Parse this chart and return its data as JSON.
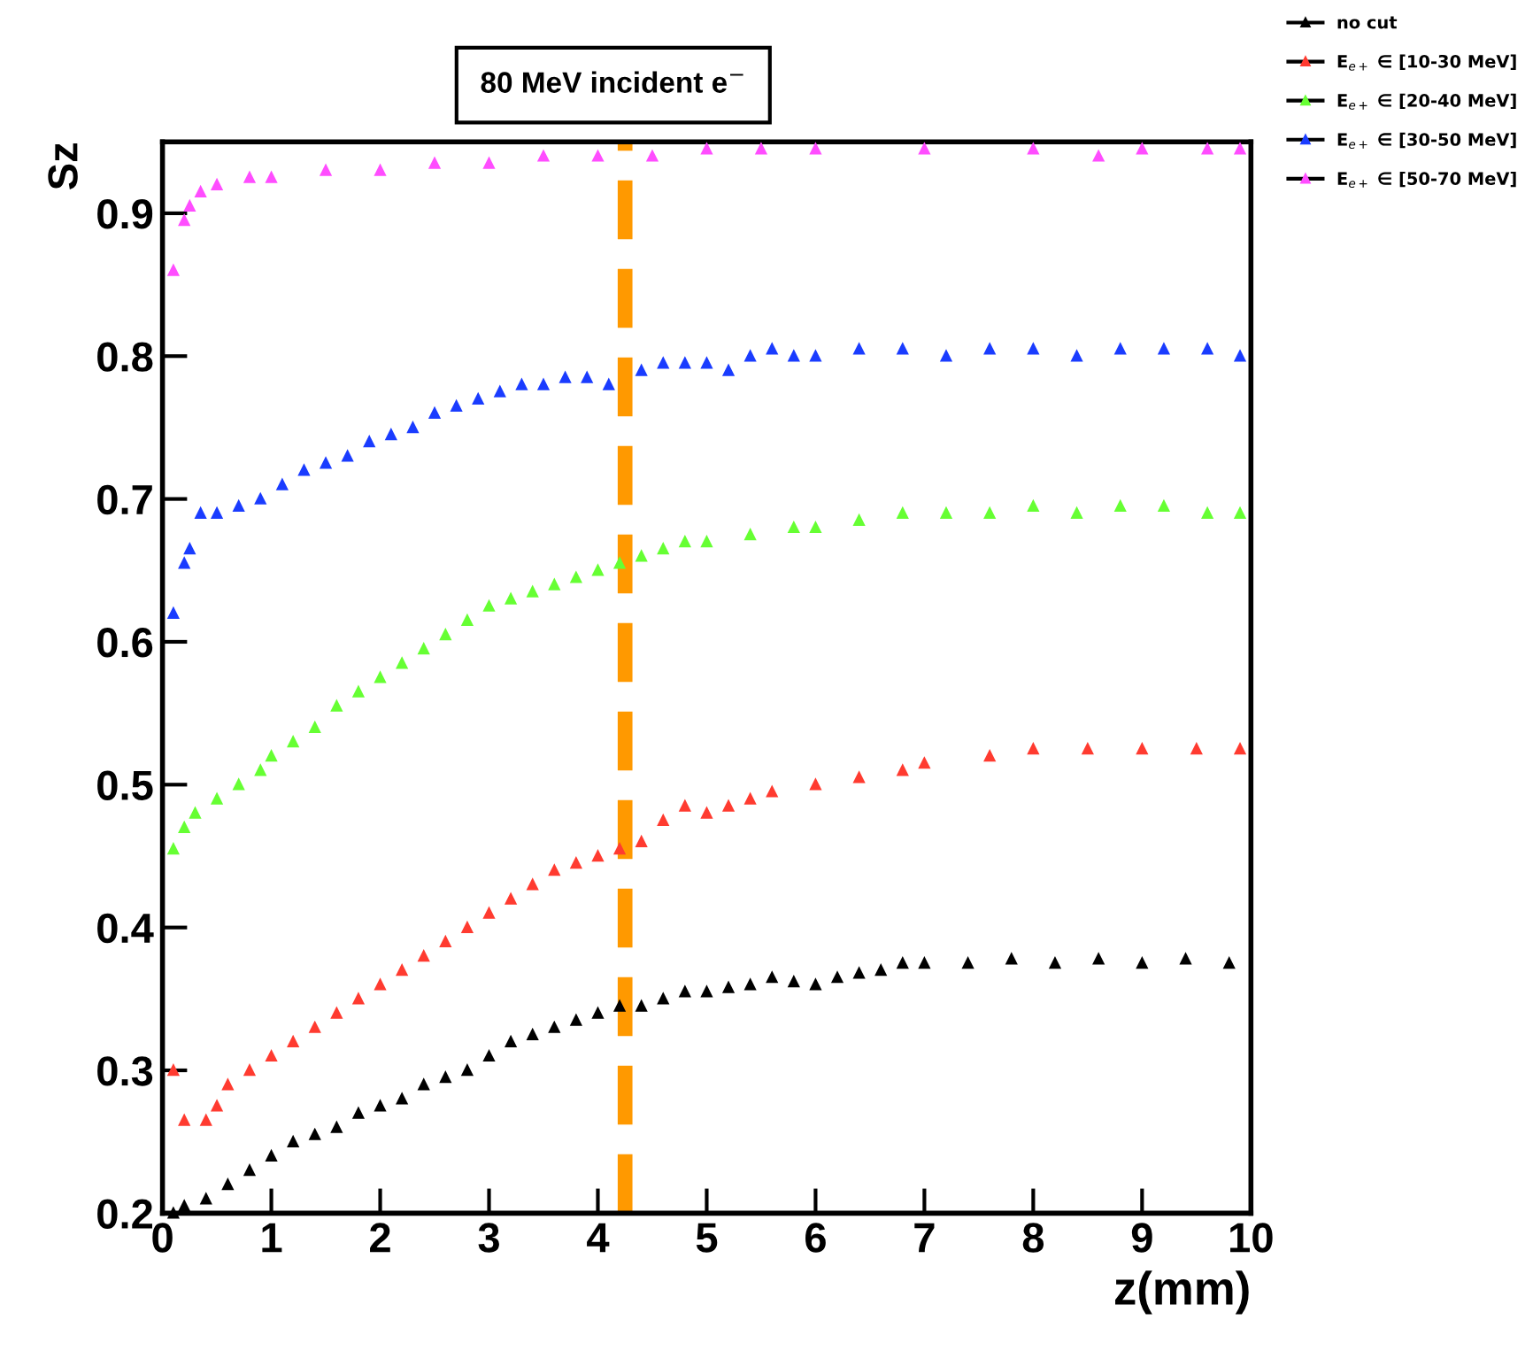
{
  "chart_data": {
    "type": "scatter",
    "title": "80 MeV incident e$^{−}$",
    "xlabel": "z(mm)",
    "ylabel": "Sz",
    "xlim": [
      0,
      10
    ],
    "xticks": [
      0,
      1,
      2,
      3,
      4,
      5,
      6,
      7,
      8,
      9,
      10
    ],
    "ylim": [
      0.2,
      0.95
    ],
    "yticks": [
      0.2,
      0.3,
      0.4,
      0.5,
      0.6,
      0.7,
      0.8,
      0.9
    ],
    "marker": "triangle",
    "legend": "top right",
    "grid": false,
    "ref_lines": [
      {
        "axis": "x",
        "value": 4.25,
        "color": "#ff9900",
        "line_style": "dashed"
      }
    ],
    "series": [
      {
        "name": "no cut",
        "color": "#000000",
        "x": [
          0.1,
          0.2,
          0.4,
          0.6,
          0.8,
          1.0,
          1.2,
          1.4,
          1.6,
          1.8,
          2.0,
          2.2,
          2.4,
          2.6,
          2.8,
          3.0,
          3.2,
          3.4,
          3.6,
          3.8,
          4.0,
          4.2,
          4.4,
          4.6,
          4.8,
          5.0,
          5.2,
          5.4,
          5.6,
          5.8,
          6.0,
          6.2,
          6.4,
          6.6,
          6.8,
          7.0,
          7.4,
          7.8,
          8.2,
          8.6,
          9.0,
          9.4,
          9.8
        ],
        "values": [
          0.2,
          0.205,
          0.21,
          0.22,
          0.23,
          0.24,
          0.25,
          0.255,
          0.26,
          0.27,
          0.275,
          0.28,
          0.29,
          0.295,
          0.3,
          0.31,
          0.32,
          0.325,
          0.33,
          0.335,
          0.34,
          0.345,
          0.345,
          0.35,
          0.355,
          0.355,
          0.358,
          0.36,
          0.365,
          0.362,
          0.36,
          0.365,
          0.368,
          0.37,
          0.375,
          0.375,
          0.375,
          0.378,
          0.375,
          0.378,
          0.375,
          0.378,
          0.375
        ]
      },
      {
        "name": "E$_{e+}$ ∈ [10-30 MeV]",
        "color": "#ff3b30",
        "x": [
          0.1,
          0.2,
          0.4,
          0.5,
          0.6,
          0.8,
          1.0,
          1.2,
          1.4,
          1.6,
          1.8,
          2.0,
          2.2,
          2.4,
          2.6,
          2.8,
          3.0,
          3.2,
          3.4,
          3.6,
          3.8,
          4.0,
          4.2,
          4.4,
          4.6,
          4.8,
          5.0,
          5.2,
          5.4,
          5.6,
          6.0,
          6.4,
          6.8,
          7.0,
          7.6,
          8.0,
          8.5,
          9.0,
          9.5,
          9.9
        ],
        "values": [
          0.3,
          0.265,
          0.265,
          0.275,
          0.29,
          0.3,
          0.31,
          0.32,
          0.33,
          0.34,
          0.35,
          0.36,
          0.37,
          0.38,
          0.39,
          0.4,
          0.41,
          0.42,
          0.43,
          0.44,
          0.445,
          0.45,
          0.455,
          0.46,
          0.475,
          0.485,
          0.48,
          0.485,
          0.49,
          0.495,
          0.5,
          0.505,
          0.51,
          0.515,
          0.52,
          0.525,
          0.525,
          0.525,
          0.525,
          0.525
        ]
      },
      {
        "name": "E$_{e+}$ ∈ [20-40 MeV]",
        "color": "#66ff33",
        "x": [
          0.1,
          0.2,
          0.3,
          0.5,
          0.7,
          0.9,
          1.0,
          1.2,
          1.4,
          1.6,
          1.8,
          2.0,
          2.2,
          2.4,
          2.6,
          2.8,
          3.0,
          3.2,
          3.4,
          3.6,
          3.8,
          4.0,
          4.2,
          4.4,
          4.6,
          4.8,
          5.0,
          5.4,
          5.8,
          6.0,
          6.4,
          6.8,
          7.2,
          7.6,
          8.0,
          8.4,
          8.8,
          9.2,
          9.6,
          9.9
        ],
        "values": [
          0.455,
          0.47,
          0.48,
          0.49,
          0.5,
          0.51,
          0.52,
          0.53,
          0.54,
          0.555,
          0.565,
          0.575,
          0.585,
          0.595,
          0.605,
          0.615,
          0.625,
          0.63,
          0.635,
          0.64,
          0.645,
          0.65,
          0.655,
          0.66,
          0.665,
          0.67,
          0.67,
          0.675,
          0.68,
          0.68,
          0.685,
          0.69,
          0.69,
          0.69,
          0.695,
          0.69,
          0.695,
          0.695,
          0.69,
          0.69
        ]
      },
      {
        "name": "E$_{e+}$ ∈ [30-50 MeV]",
        "color": "#1a3cff",
        "x": [
          0.1,
          0.2,
          0.25,
          0.35,
          0.5,
          0.7,
          0.9,
          1.1,
          1.3,
          1.5,
          1.7,
          1.9,
          2.1,
          2.3,
          2.5,
          2.7,
          2.9,
          3.1,
          3.3,
          3.5,
          3.7,
          3.9,
          4.1,
          4.4,
          4.6,
          4.8,
          5.0,
          5.2,
          5.4,
          5.6,
          5.8,
          6.0,
          6.4,
          6.8,
          7.2,
          7.6,
          8.0,
          8.4,
          8.8,
          9.2,
          9.6,
          9.9
        ],
        "values": [
          0.62,
          0.655,
          0.665,
          0.69,
          0.69,
          0.695,
          0.7,
          0.71,
          0.72,
          0.725,
          0.73,
          0.74,
          0.745,
          0.75,
          0.76,
          0.765,
          0.77,
          0.775,
          0.78,
          0.78,
          0.785,
          0.785,
          0.78,
          0.79,
          0.795,
          0.795,
          0.795,
          0.79,
          0.8,
          0.805,
          0.8,
          0.8,
          0.805,
          0.805,
          0.8,
          0.805,
          0.805,
          0.8,
          0.805,
          0.805,
          0.805,
          0.8
        ]
      },
      {
        "name": "E$_{e+}$ ∈ [50-70 MeV]",
        "color": "#ff4dff",
        "x": [
          0.1,
          0.2,
          0.25,
          0.35,
          0.5,
          0.8,
          1.0,
          1.5,
          2.0,
          2.5,
          3.0,
          3.5,
          4.0,
          4.5,
          5.0,
          5.5,
          6.0,
          7.0,
          8.0,
          8.6,
          9.0,
          9.6,
          9.9
        ],
        "values": [
          0.86,
          0.895,
          0.905,
          0.915,
          0.92,
          0.925,
          0.925,
          0.93,
          0.93,
          0.935,
          0.935,
          0.94,
          0.94,
          0.94,
          0.945,
          0.945,
          0.945,
          0.945,
          0.945,
          0.94,
          0.945,
          0.945,
          0.945
        ]
      }
    ]
  }
}
